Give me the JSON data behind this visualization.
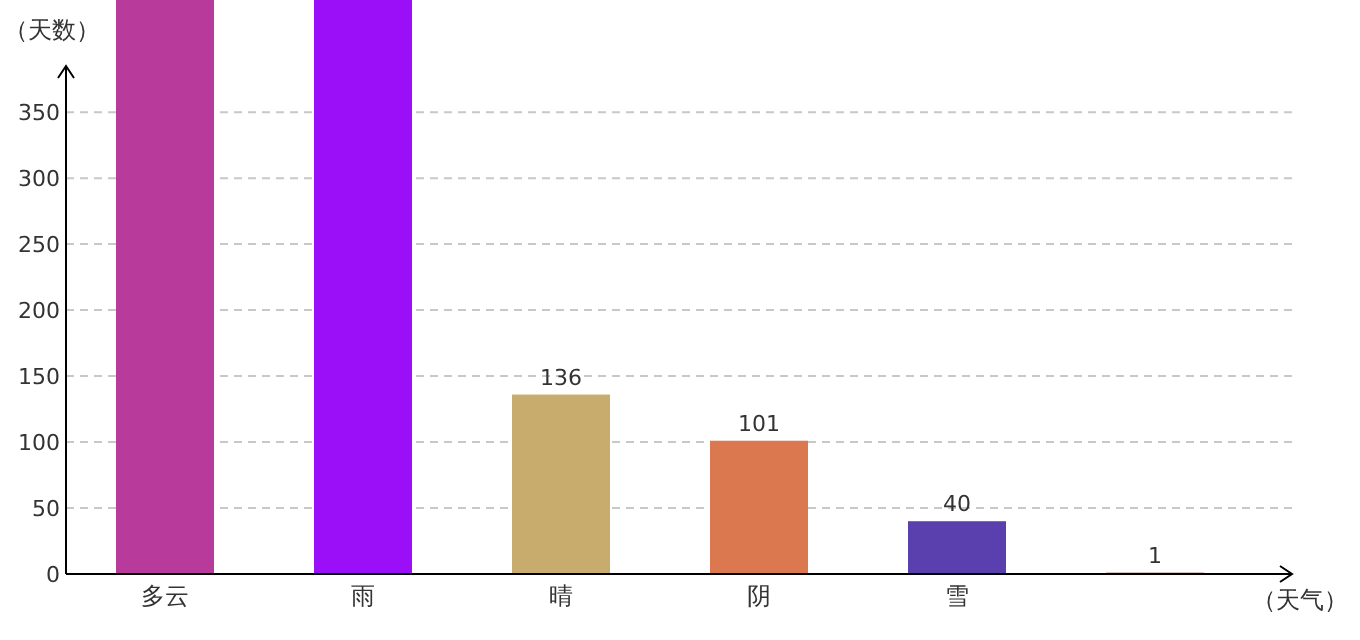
{
  "chart_data": {
    "type": "bar",
    "xlabel": "（天气）",
    "ylabel": "（天数）",
    "categories": [
      "多云",
      "雨",
      "晴",
      "阴",
      "雪",
      null
    ],
    "values": [
      435,
      435,
      136,
      101,
      40,
      1
    ],
    "colors": [
      "#b83b9b",
      "#9a0ff7",
      "#c8ac6e",
      "#dc7850",
      "#5a3fae",
      "#8b4a2a"
    ],
    "value_labels": [
      null,
      null,
      "136",
      "101",
      "40",
      "1"
    ],
    "ylim": [
      0,
      435
    ],
    "yticks": [
      0,
      50,
      100,
      150,
      200,
      250,
      300,
      350
    ],
    "grid": "y"
  }
}
